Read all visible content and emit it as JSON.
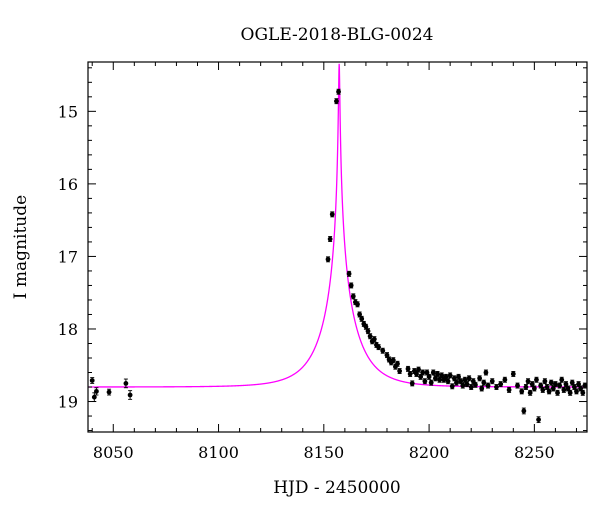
{
  "chart_data": {
    "type": "scatter",
    "title": "OGLE-2018-BLG-0024",
    "xlabel": "HJD - 2450000",
    "ylabel": "I magnitude",
    "xlim": [
      8038,
      8275
    ],
    "ylim": [
      19.42,
      14.32
    ],
    "y_inverted": true,
    "x_ticks": [
      8050,
      8100,
      8150,
      8200,
      8250
    ],
    "y_ticks": [
      15,
      16,
      17,
      18,
      19
    ],
    "colors": {
      "model": "#ff00ff",
      "points": "#000000"
    },
    "model": {
      "name": "",
      "t0": 8157.3,
      "u0": 0.0165,
      "tE": 16.0,
      "baseline_mag": 18.8
    },
    "series": [
      {
        "name": "",
        "points": [
          [
            8040,
            18.71,
            0.04
          ],
          [
            8041,
            18.94,
            0.06
          ],
          [
            8042,
            18.86,
            0.05
          ],
          [
            8048,
            18.87,
            0.04
          ],
          [
            8056,
            18.75,
            0.06
          ],
          [
            8058,
            18.91,
            0.06
          ],
          [
            8152,
            17.04,
            0.02
          ],
          [
            8153,
            16.76,
            0.02
          ],
          [
            8154,
            16.42,
            0.02
          ],
          [
            8156,
            14.86,
            0.01
          ],
          [
            8157,
            14.73,
            0.01
          ],
          [
            8162,
            17.24,
            0.02
          ],
          [
            8163,
            17.4,
            0.02
          ],
          [
            8164,
            17.55,
            0.02
          ],
          [
            8165,
            17.63,
            0.02
          ],
          [
            8166,
            17.66,
            0.02
          ],
          [
            8167,
            17.8,
            0.02
          ],
          [
            8168,
            17.86,
            0.02
          ],
          [
            8169,
            17.93,
            0.02
          ],
          [
            8170,
            17.97,
            0.02
          ],
          [
            8171,
            18.03,
            0.02
          ],
          [
            8172,
            18.1,
            0.02
          ],
          [
            8173,
            18.17,
            0.02
          ],
          [
            8174,
            18.14,
            0.02
          ],
          [
            8175,
            18.22,
            0.02
          ],
          [
            8176,
            18.25,
            0.02
          ],
          [
            8178,
            18.3,
            0.02
          ],
          [
            8180,
            18.36,
            0.02
          ],
          [
            8181,
            18.42,
            0.02
          ],
          [
            8182,
            18.46,
            0.02
          ],
          [
            8183,
            18.43,
            0.02
          ],
          [
            8184,
            18.52,
            0.02
          ],
          [
            8185,
            18.48,
            0.02
          ],
          [
            8186,
            18.58,
            0.03
          ],
          [
            8190,
            18.55,
            0.03
          ],
          [
            8191,
            18.62,
            0.03
          ],
          [
            8192,
            18.75,
            0.03
          ],
          [
            8193,
            18.58,
            0.03
          ],
          [
            8194,
            18.62,
            0.03
          ],
          [
            8195,
            18.56,
            0.03
          ],
          [
            8196,
            18.66,
            0.03
          ],
          [
            8197,
            18.6,
            0.03
          ],
          [
            8198,
            18.72,
            0.03
          ],
          [
            8199,
            18.6,
            0.03
          ],
          [
            8200,
            18.66,
            0.03
          ],
          [
            8201,
            18.74,
            0.03
          ],
          [
            8202,
            18.6,
            0.03
          ],
          [
            8203,
            18.68,
            0.03
          ],
          [
            8204,
            18.62,
            0.03
          ],
          [
            8205,
            18.7,
            0.03
          ],
          [
            8206,
            18.64,
            0.03
          ],
          [
            8207,
            18.7,
            0.03
          ],
          [
            8208,
            18.66,
            0.03
          ],
          [
            8209,
            18.72,
            0.03
          ],
          [
            8210,
            18.64,
            0.03
          ],
          [
            8211,
            18.79,
            0.03
          ],
          [
            8212,
            18.68,
            0.03
          ],
          [
            8213,
            18.74,
            0.03
          ],
          [
            8214,
            18.66,
            0.03
          ],
          [
            8215,
            18.72,
            0.03
          ],
          [
            8216,
            18.78,
            0.03
          ],
          [
            8217,
            18.7,
            0.03
          ],
          [
            8218,
            18.76,
            0.03
          ],
          [
            8219,
            18.68,
            0.03
          ],
          [
            8220,
            18.8,
            0.03
          ],
          [
            8221,
            18.72,
            0.03
          ],
          [
            8222,
            18.77,
            0.03
          ],
          [
            8224,
            18.68,
            0.03
          ],
          [
            8225,
            18.82,
            0.03
          ],
          [
            8226,
            18.74,
            0.03
          ],
          [
            8227,
            18.6,
            0.03
          ],
          [
            8228,
            18.78,
            0.03
          ],
          [
            8230,
            18.72,
            0.03
          ],
          [
            8232,
            18.8,
            0.03
          ],
          [
            8234,
            18.76,
            0.03
          ],
          [
            8236,
            18.7,
            0.03
          ],
          [
            8238,
            18.84,
            0.03
          ],
          [
            8240,
            18.62,
            0.03
          ],
          [
            8242,
            18.78,
            0.03
          ],
          [
            8244,
            18.86,
            0.03
          ],
          [
            8245,
            19.13,
            0.04
          ],
          [
            8246,
            18.8,
            0.03
          ],
          [
            8247,
            18.72,
            0.03
          ],
          [
            8248,
            18.88,
            0.03
          ],
          [
            8249,
            18.76,
            0.03
          ],
          [
            8250,
            18.82,
            0.03
          ],
          [
            8251,
            18.7,
            0.03
          ],
          [
            8252,
            19.25,
            0.04
          ],
          [
            8253,
            18.78,
            0.03
          ],
          [
            8254,
            18.84,
            0.03
          ],
          [
            8255,
            18.72,
            0.03
          ],
          [
            8256,
            18.8,
            0.03
          ],
          [
            8257,
            18.86,
            0.03
          ],
          [
            8258,
            18.74,
            0.03
          ],
          [
            8259,
            18.82,
            0.03
          ],
          [
            8260,
            18.76,
            0.03
          ],
          [
            8261,
            18.88,
            0.03
          ],
          [
            8262,
            18.78,
            0.03
          ],
          [
            8263,
            18.7,
            0.03
          ],
          [
            8264,
            18.84,
            0.03
          ],
          [
            8265,
            18.76,
            0.03
          ],
          [
            8266,
            18.82,
            0.03
          ],
          [
            8267,
            18.88,
            0.03
          ],
          [
            8268,
            18.74,
            0.03
          ],
          [
            8269,
            18.8,
            0.03
          ],
          [
            8270,
            18.86,
            0.03
          ],
          [
            8271,
            18.76,
            0.03
          ],
          [
            8272,
            18.82,
            0.03
          ],
          [
            8273,
            18.88,
            0.03
          ],
          [
            8274,
            18.78,
            0.03
          ]
        ]
      }
    ],
    "grid": false,
    "legend": "none"
  }
}
